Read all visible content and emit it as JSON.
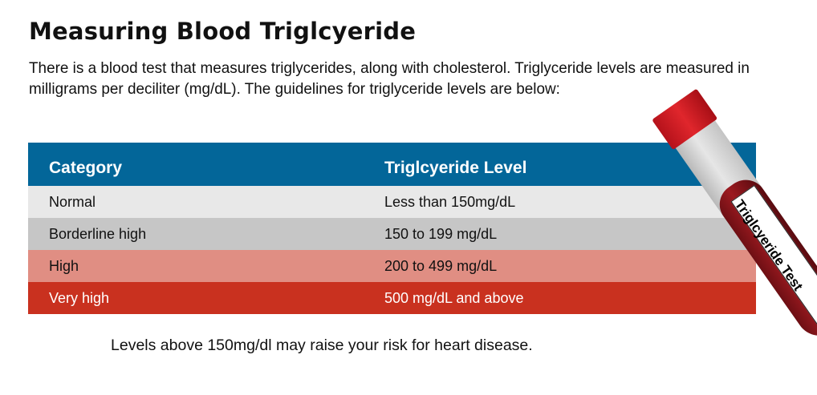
{
  "title": "Measuring Blood Triglcyeride",
  "intro": "There is a blood test that measures triglycerides, along with cholesterol. Triglyceride levels are measured in milligrams per deciliter (mg/dL). The guidelines for triglyceride levels are below:",
  "table": {
    "headers": [
      "Category",
      "Triglcyeride Level"
    ],
    "rows": [
      {
        "category": "Normal",
        "level": "Less than 150mg/dL",
        "color": "#e8e8e8"
      },
      {
        "category": "Borderline high",
        "level": "150 to 199 mg/dL",
        "color": "#c6c6c6"
      },
      {
        "category": "High",
        "level": "200 to 499 mg/dL",
        "color": "#e08e83"
      },
      {
        "category": "Very high",
        "level": "500 mg/dL and above",
        "color": "#c9311f"
      }
    ],
    "header_color": "#036699"
  },
  "tube": {
    "label": "Triglcyeride Test"
  },
  "note": "Levels above 150mg/dl may raise your risk for heart disease."
}
